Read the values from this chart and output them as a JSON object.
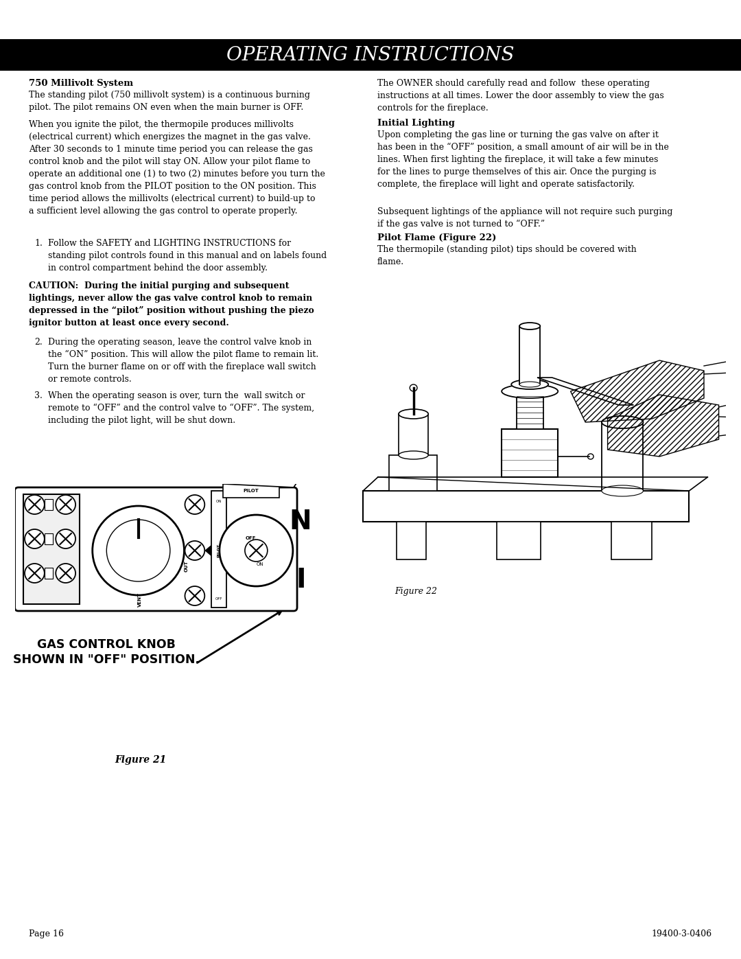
{
  "title": "OPERATING INSTRUCTIONS",
  "title_bg": "#000000",
  "title_color": "#ffffff",
  "title_fontsize": 20,
  "page_bg": "#ffffff",
  "text_color": "#000000",
  "section1_heading": "750 Millivolt System",
  "section1_para1": "The standing pilot (750 millivolt system) is a continuous burning\npilot. The pilot remains ON even when the main burner is OFF.",
  "section1_para2": "When you ignite the pilot, the thermopile produces millivolts\n(electrical current) which energizes the magnet in the gas valve.\nAfter 30 seconds to 1 minute time period you can release the gas\ncontrol knob and the pilot will stay ON. Allow your pilot flame to\noperate an additional one (1) to two (2) minutes before you turn the\ngas control knob from the PILOT position to the ON position. This\ntime period allows the millivolts (electrical current) to build-up to\na sufficient level allowing the gas control to operate properly.",
  "item1_num": "1.",
  "item1_text": "Follow the SAFETY and LIGHTING INSTRUCTIONS for\nstanding pilot controls found in this manual and on labels found\nin control compartment behind the door assembly.",
  "caution_text": "CAUTION:  During the initial purging and subsequent\nlightings, never allow the gas valve control knob to remain\ndepressed in the “pilot” position without pushing the piezo\nignitor button at least once every second.",
  "item2_num": "2.",
  "item2_text": "During the operating season, leave the control valve knob in\nthe “ON” position. This will allow the pilot flame to remain lit.\nTurn the burner flame on or off with the fireplace wall switch\nor remote controls.",
  "item3_num": "3.",
  "item3_text": "When the operating season is over, turn the  wall switch or\nremote to “OFF” and the control valve to “OFF”. The system,\nincluding the pilot light, will be shut down.",
  "right_intro": "The OWNER should carefully read and follow  these operating\ninstructions at all times. Lower the door assembly to view the gas\ncontrols for the fireplace.",
  "right_heading1": "Initial Lighting",
  "right_para1": "Upon completing the gas line or turning the gas valve on after it\nhas been in the “OFF” position, a small amount of air will be in the\nlines. When first lighting the fireplace, it will take a few minutes\nfor the lines to purge themselves of this air. Once the purging is\ncomplete, the fireplace will light and operate satisfactorily.",
  "right_para2": "Subsequent lightings of the appliance will not require such purging\nif the gas valve is not turned to “OFF.”",
  "right_heading2": "Pilot Flame (Figure 22)",
  "right_para3": "The thermopile (standing pilot) tips should be covered with\nflame.",
  "figure21_caption": "Figure 21",
  "figure22_caption": "Figure 22",
  "gas_control_label": "GAS CONTROL KNOB\nSHOWN IN \"OFF\" POSITION.",
  "footer_left": "Page 16",
  "footer_right": "19400-3-0406",
  "fontsize_body": 9.0,
  "fontsize_heading": 9.5,
  "fontsize_caption": 9
}
